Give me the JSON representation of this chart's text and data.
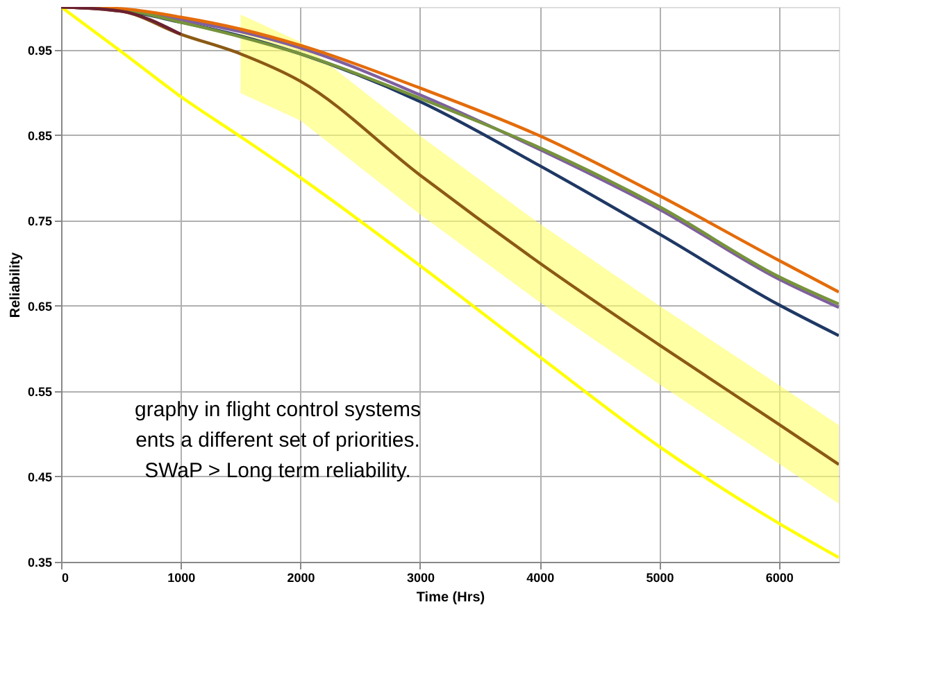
{
  "chart_data": {
    "type": "line",
    "xlabel": "Time (Hrs)",
    "ylabel": "Reliability",
    "xlim": [
      0,
      6500
    ],
    "xticks": [
      0,
      1000,
      2000,
      3000,
      4000,
      5000,
      6000
    ],
    "ylim": [
      0.35,
      1.0
    ],
    "yticks": [
      0.35,
      0.45,
      0.55,
      0.65,
      0.75,
      0.85,
      0.95
    ],
    "grid": true,
    "marker": "none",
    "line_style": "solid",
    "x": [
      0,
      500,
      1000,
      1500,
      2000,
      3000,
      4000,
      5000,
      6000,
      6500
    ],
    "series": [
      {
        "color": "#ffff00",
        "values": [
          1.0,
          0.948,
          0.895,
          0.848,
          0.8,
          0.697,
          0.59,
          0.485,
          0.395,
          0.355
        ]
      },
      {
        "color": "#1f3864",
        "values": [
          1.0,
          0.996,
          0.982,
          0.966,
          0.945,
          0.889,
          0.814,
          0.734,
          0.651,
          0.615
        ]
      },
      {
        "color": "#7f5f9f",
        "values": [
          1.0,
          0.997,
          0.985,
          0.971,
          0.952,
          0.897,
          0.833,
          0.763,
          0.681,
          0.648
        ]
      },
      {
        "color": "#77933c",
        "values": [
          1.0,
          0.997,
          0.982,
          0.965,
          0.945,
          0.893,
          0.835,
          0.766,
          0.684,
          0.652
        ]
      },
      {
        "color": "#e46c0a",
        "values": [
          1.0,
          0.998,
          0.988,
          0.974,
          0.955,
          0.905,
          0.849,
          0.779,
          0.703,
          0.666
        ]
      },
      {
        "color": "#8b5a14",
        "values": [
          1.0,
          0.995,
          0.968,
          0.945,
          0.913,
          0.803,
          0.7,
          0.604,
          0.511,
          0.464
        ],
        "lower": [
          null,
          null,
          null,
          0.899,
          0.867,
          0.757,
          0.654,
          0.558,
          0.465,
          0.418
        ],
        "upper": [
          null,
          null,
          null,
          0.991,
          0.959,
          0.849,
          0.746,
          0.65,
          0.557,
          0.51
        ]
      },
      {
        "color": "#6b2030",
        "values": [
          1.0,
          0.995,
          0.968,
          null,
          null,
          null,
          null,
          null,
          null,
          null
        ]
      }
    ],
    "annotations": [
      "graphy in flight control systems",
      "ents a different set of priorities.",
      "SWaP > Long term reliability."
    ]
  }
}
